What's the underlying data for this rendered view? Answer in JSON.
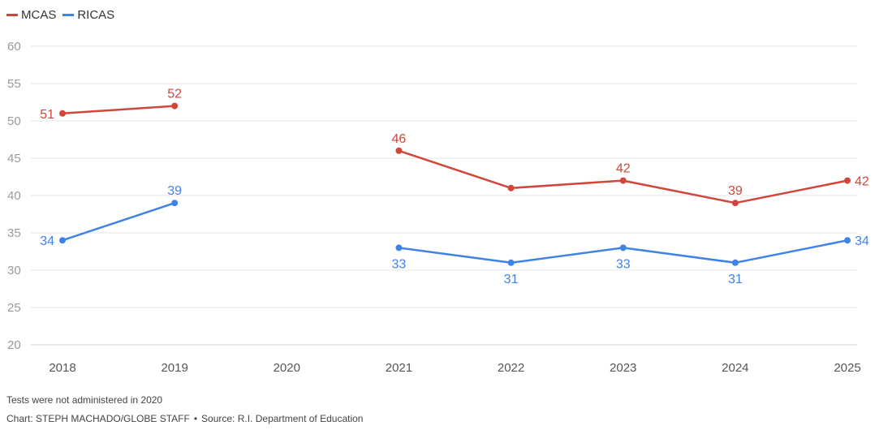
{
  "legend": {
    "items": [
      {
        "label": "MCAS",
        "color": "#d0463a"
      },
      {
        "label": "RICAS",
        "color": "#3f82e8"
      }
    ]
  },
  "footer": {
    "note": "Tests were not administered in 2020",
    "credit": "Chart: STEPH MACHADO/GLOBE STAFF",
    "separator": "•",
    "source": "Source: R.I. Department of Education"
  },
  "chart_data": {
    "type": "line",
    "x": [
      "2018",
      "2019",
      "2020",
      "2021",
      "2022",
      "2023",
      "2024",
      "2025"
    ],
    "ylim": [
      20,
      60
    ],
    "yticks": [
      20,
      25,
      30,
      35,
      40,
      45,
      50,
      55,
      60
    ],
    "grid": true,
    "legend_position": "top-left",
    "series": [
      {
        "name": "MCAS",
        "color": "#d0463a",
        "values": [
          51,
          52,
          null,
          46,
          41,
          42,
          39,
          42
        ],
        "labels": [
          "51",
          "52",
          "",
          "46",
          "",
          "42",
          "39",
          "42"
        ]
      },
      {
        "name": "RICAS",
        "color": "#3f82e8",
        "values": [
          34,
          39,
          null,
          33,
          31,
          33,
          31,
          34
        ],
        "labels": [
          "34",
          "39",
          "",
          "33",
          "31",
          "33",
          "31",
          "34"
        ]
      }
    ]
  }
}
